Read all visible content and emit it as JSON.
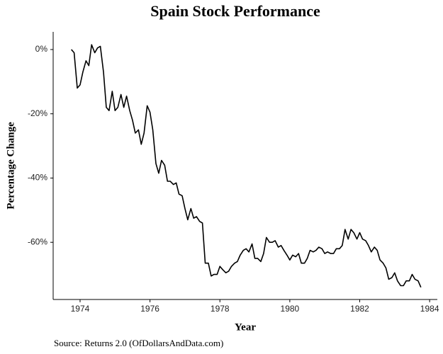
{
  "chart_data": {
    "type": "line",
    "title": "Spain Stock Performance",
    "x_label": "Year",
    "y_label": "Percentage Change",
    "source": "Source: Returns 2.0 (OfDollarsAndData.com)",
    "color": "#000000",
    "x": [
      1973.75,
      1973.83,
      1973.92,
      1974.0,
      1974.08,
      1974.17,
      1974.25,
      1974.33,
      1974.42,
      1974.5,
      1974.58,
      1974.67,
      1974.75,
      1974.83,
      1974.92,
      1975.0,
      1975.08,
      1975.17,
      1975.25,
      1975.33,
      1975.42,
      1975.5,
      1975.58,
      1975.67,
      1975.75,
      1975.83,
      1975.92,
      1976.0,
      1976.08,
      1976.17,
      1976.25,
      1976.33,
      1976.42,
      1976.5,
      1976.58,
      1976.67,
      1976.75,
      1976.83,
      1976.92,
      1977.0,
      1977.08,
      1977.17,
      1977.25,
      1977.33,
      1977.42,
      1977.5,
      1977.58,
      1977.67,
      1977.75,
      1977.83,
      1977.92,
      1978.0,
      1978.08,
      1978.17,
      1978.25,
      1978.33,
      1978.42,
      1978.5,
      1978.58,
      1978.67,
      1978.75,
      1978.83,
      1978.92,
      1979.0,
      1979.08,
      1979.17,
      1979.25,
      1979.33,
      1979.42,
      1979.5,
      1979.58,
      1979.67,
      1979.75,
      1979.83,
      1979.92,
      1980.0,
      1980.08,
      1980.17,
      1980.25,
      1980.33,
      1980.42,
      1980.5,
      1980.58,
      1980.67,
      1980.75,
      1980.83,
      1980.92,
      1981.0,
      1981.08,
      1981.17,
      1981.25,
      1981.33,
      1981.42,
      1981.5,
      1981.58,
      1981.67,
      1981.75,
      1981.83,
      1981.92,
      1982.0,
      1982.08,
      1982.17,
      1982.25,
      1982.33,
      1982.42,
      1982.5,
      1982.58,
      1982.67,
      1982.75,
      1982.83,
      1982.92,
      1983.0,
      1983.08,
      1983.17,
      1983.25,
      1983.33,
      1983.42,
      1983.5,
      1983.58,
      1983.67,
      1983.75
    ],
    "values": [
      0,
      -1,
      -12,
      -11,
      -7,
      -3.5,
      -5,
      1.5,
      -1,
      0.5,
      1,
      -7,
      -18,
      -19,
      -13,
      -19,
      -18,
      -14,
      -18,
      -14.5,
      -19,
      -22,
      -26,
      -25,
      -29.5,
      -26,
      -17.5,
      -19.5,
      -25,
      -35.5,
      -38.5,
      -34.5,
      -36,
      -41,
      -41,
      -42,
      -41.5,
      -45,
      -45.5,
      -49.5,
      -53,
      -49.5,
      -52.5,
      -52,
      -53.5,
      -54,
      -66.5,
      -66.5,
      -70.5,
      -70,
      -70,
      -67.5,
      -68.5,
      -69.5,
      -69,
      -67.5,
      -66.5,
      -66,
      -64,
      -62.5,
      -62,
      -63,
      -60.5,
      -65,
      -65,
      -66,
      -63.5,
      -58.5,
      -60,
      -60,
      -59.5,
      -61.5,
      -61,
      -62.5,
      -64,
      -65.5,
      -64,
      -64.5,
      -63.5,
      -66.5,
      -66.5,
      -65,
      -62.5,
      -63,
      -62.5,
      -61.5,
      -62,
      -63.5,
      -63,
      -63.5,
      -63.5,
      -62,
      -62,
      -61,
      -56,
      -59,
      -56,
      -57,
      -59,
      -57,
      -59,
      -59.5,
      -61,
      -63,
      -61.5,
      -62.5,
      -65.5,
      -66.5,
      -68,
      -71.5,
      -71,
      -69.5,
      -72,
      -73.5,
      -73.5,
      -72,
      -72,
      -70,
      -71.5,
      -72,
      -74
    ],
    "xlim": [
      1973.23,
      1984.22
    ],
    "ylim": [
      -77.8,
      5.5
    ],
    "xticks": [
      1974,
      1976,
      1978,
      1980,
      1982,
      1984
    ],
    "yticks": [
      {
        "value": 0,
        "label": "0%"
      },
      {
        "value": -20,
        "label": "-20%"
      },
      {
        "value": -40,
        "label": "-40%"
      },
      {
        "value": -60,
        "label": "-60%"
      }
    ]
  }
}
